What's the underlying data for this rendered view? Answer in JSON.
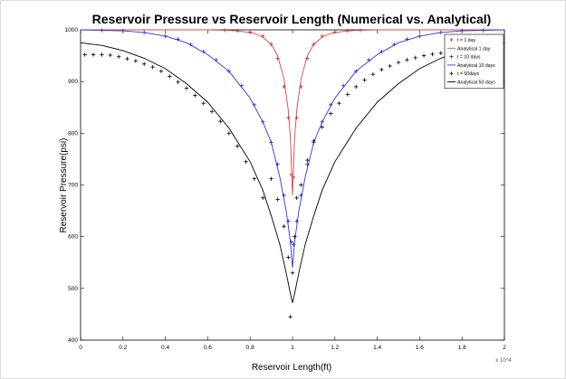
{
  "chart_data": {
    "type": "line",
    "title": "Reservoir Pressure vs Reservoir Length (Numerical vs. Analytical)",
    "xlabel": "Reservoir Length(ft)",
    "ylabel": "Reservoir Pressure(psi)",
    "x_exponent_label": "x 10^4",
    "xlim": [
      0,
      2
    ],
    "ylim": [
      400,
      1000
    ],
    "x_ticks": [
      "0",
      "0.2",
      "0.4",
      "0.6",
      "0.8",
      "1",
      "1.2",
      "1.4",
      "1.6",
      "1.8",
      "2"
    ],
    "y_ticks": [
      "400",
      "500",
      "600",
      "700",
      "800",
      "900",
      "1000"
    ],
    "grid": false,
    "legend_position": "top-right",
    "legend": [
      {
        "label": "t = 1 day",
        "marker": "+",
        "color": "#cc2222"
      },
      {
        "label": "Analytical 1 day",
        "marker": "line",
        "color": "#dd4444"
      },
      {
        "label": "t = 10 days",
        "marker": "+",
        "color": "#2222cc"
      },
      {
        "label": "Analytical 10 days",
        "marker": "line",
        "color": "#3333dd"
      },
      {
        "label": "t = 50days",
        "marker": "+",
        "color": "#000000"
      },
      {
        "label": "Analytical 50 days",
        "marker": "line",
        "color": "#000000"
      }
    ],
    "series": [
      {
        "name": "t = 1 day",
        "kind": "markers",
        "color": "#cc2222",
        "x": [
          0.68,
          0.74,
          0.8,
          0.86,
          0.9,
          0.93,
          0.96,
          0.98,
          0.995,
          1.005,
          1.02,
          1.04,
          1.07,
          1.1,
          1.14,
          1.2,
          1.26,
          1.32
        ],
        "y": [
          999,
          998,
          996,
          988,
          972,
          945,
          890,
          830,
          720,
          715,
          830,
          890,
          945,
          972,
          988,
          996,
          998,
          999
        ]
      },
      {
        "name": "Analytical 1 day",
        "kind": "line",
        "color": "#dd4444",
        "x": [
          0,
          0.6,
          0.7,
          0.76,
          0.82,
          0.86,
          0.9,
          0.93,
          0.96,
          0.98,
          0.99,
          1.0,
          1.01,
          1.02,
          1.04,
          1.07,
          1.1,
          1.14,
          1.18,
          1.24,
          1.3,
          1.4,
          2.0
        ],
        "y": [
          1000,
          1000,
          999,
          997,
          993,
          986,
          972,
          950,
          905,
          845,
          790,
          680,
          790,
          845,
          905,
          950,
          972,
          986,
          993,
          997,
          999,
          1000,
          1000
        ]
      },
      {
        "name": "t = 10 days",
        "kind": "markers",
        "color": "#2222cc",
        "x": [
          0.1,
          0.2,
          0.3,
          0.4,
          0.46,
          0.52,
          0.58,
          0.64,
          0.7,
          0.76,
          0.82,
          0.86,
          0.9,
          0.93,
          0.96,
          0.98,
          0.995,
          1.005,
          1.02,
          1.04,
          1.07,
          1.1,
          1.14,
          1.18,
          1.24,
          1.3,
          1.36,
          1.42,
          1.48,
          1.54,
          1.6,
          1.7,
          1.8,
          1.9
        ],
        "y": [
          999,
          998,
          995,
          988,
          982,
          972,
          958,
          942,
          920,
          892,
          855,
          822,
          782,
          740,
          680,
          630,
          590,
          585,
          630,
          680,
          740,
          782,
          822,
          855,
          892,
          920,
          942,
          958,
          972,
          982,
          988,
          995,
          998,
          999
        ]
      },
      {
        "name": "Analytical 10 days",
        "kind": "line",
        "color": "#3333dd",
        "x": [
          0,
          0.2,
          0.3,
          0.4,
          0.5,
          0.6,
          0.7,
          0.8,
          0.86,
          0.9,
          0.94,
          0.97,
          0.99,
          1.0,
          1.01,
          1.03,
          1.06,
          1.1,
          1.14,
          1.2,
          1.3,
          1.4,
          1.5,
          1.6,
          1.7,
          1.8,
          2.0
        ],
        "y": [
          1000,
          998,
          995,
          988,
          975,
          952,
          920,
          868,
          822,
          782,
          715,
          650,
          590,
          540,
          590,
          650,
          715,
          782,
          822,
          868,
          920,
          952,
          975,
          988,
          995,
          998,
          1000
        ]
      },
      {
        "name": "t = 50days",
        "kind": "markers",
        "color": "#000000",
        "x": [
          0.02,
          0.06,
          0.1,
          0.14,
          0.18,
          0.22,
          0.26,
          0.3,
          0.34,
          0.38,
          0.42,
          0.46,
          0.5,
          0.54,
          0.58,
          0.62,
          0.66,
          0.7,
          0.74,
          0.78,
          0.82,
          0.86,
          0.9,
          0.93,
          0.96,
          0.98,
          0.99,
          1.0,
          1.01,
          1.02,
          1.04,
          1.07,
          1.1,
          1.14,
          1.18,
          1.22,
          1.26,
          1.3,
          1.34,
          1.38,
          1.42,
          1.46,
          1.5,
          1.54,
          1.58,
          1.62,
          1.66,
          1.7,
          1.74,
          1.78,
          1.82,
          1.86,
          1.9,
          1.94,
          1.98
        ],
        "y": [
          952,
          952,
          952,
          951,
          948,
          944,
          940,
          934,
          928,
          920,
          910,
          899,
          887,
          873,
          858,
          842,
          823,
          800,
          775,
          745,
          712,
          675,
          712,
          672,
          620,
          560,
          445,
          530,
          600,
          675,
          700,
          748,
          785,
          812,
          838,
          858,
          875,
          890,
          903,
          914,
          923,
          930,
          937,
          942,
          946,
          950,
          953,
          955,
          957,
          958,
          959,
          960,
          961,
          962,
          962
        ]
      },
      {
        "name": "Analytical 50 days",
        "kind": "line",
        "color": "#000000",
        "x": [
          0,
          0.1,
          0.2,
          0.3,
          0.4,
          0.5,
          0.6,
          0.7,
          0.8,
          0.86,
          0.9,
          0.94,
          0.97,
          0.99,
          1.0,
          1.01,
          1.03,
          1.06,
          1.1,
          1.14,
          1.2,
          1.3,
          1.4,
          1.5,
          1.6,
          1.7,
          1.8,
          1.9,
          2.0
        ],
        "y": [
          975,
          970,
          960,
          945,
          925,
          896,
          860,
          810,
          745,
          690,
          640,
          585,
          530,
          490,
          472,
          490,
          530,
          585,
          640,
          690,
          745,
          810,
          860,
          896,
          925,
          945,
          960,
          970,
          975
        ]
      }
    ]
  }
}
